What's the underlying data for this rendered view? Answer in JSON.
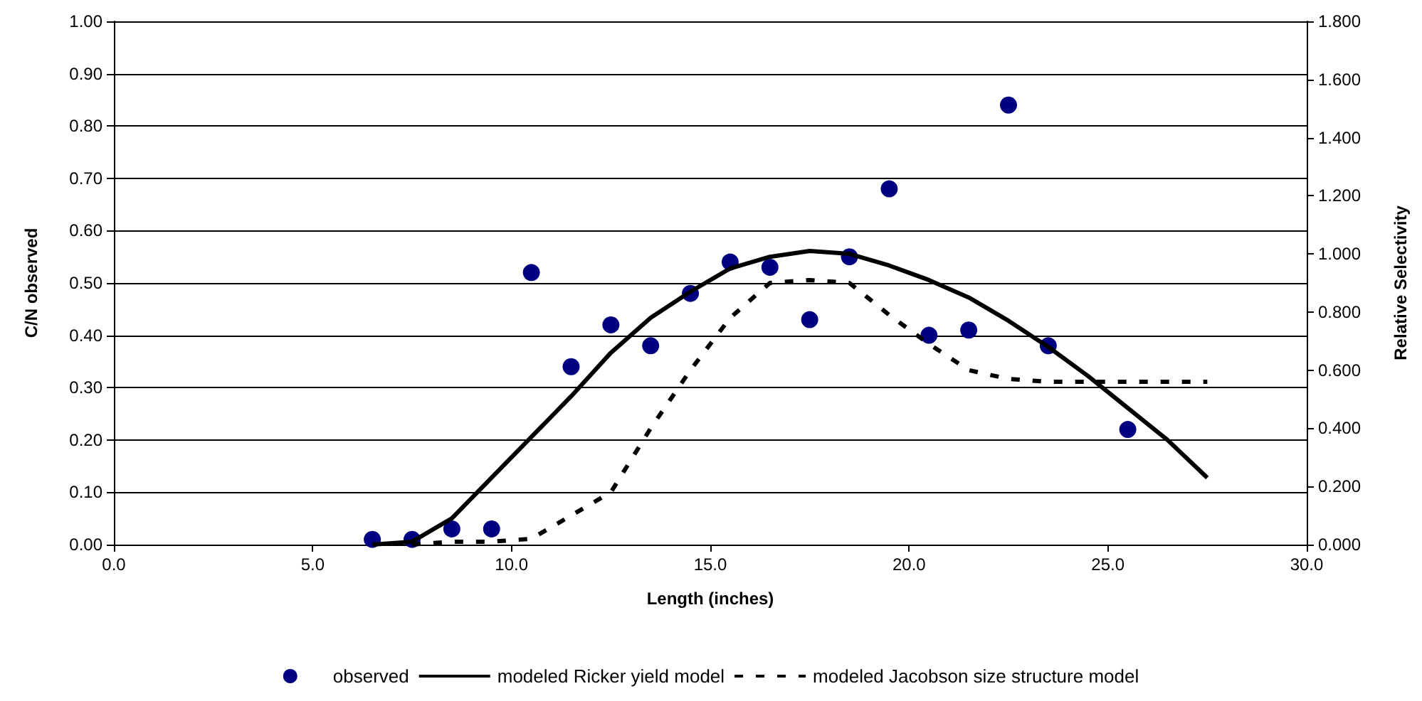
{
  "chart_data": {
    "type": "scatter",
    "xlabel": "Length (inches)",
    "ylabel": "C/N observed",
    "y2label": "Relative Selectivity",
    "xlim": [
      0,
      30
    ],
    "xticks": [
      {
        "value": 0,
        "label": "0.0"
      },
      {
        "value": 5,
        "label": "5.0"
      },
      {
        "value": 10,
        "label": "10.0"
      },
      {
        "value": 15,
        "label": "15.0"
      },
      {
        "value": 20,
        "label": "20.0"
      },
      {
        "value": 25,
        "label": "25.0"
      },
      {
        "value": 30,
        "label": "30.0"
      }
    ],
    "ylim": [
      0,
      1
    ],
    "yticks": [
      {
        "value": 0,
        "label": "0.00"
      },
      {
        "value": 0.1,
        "label": "0.10"
      },
      {
        "value": 0.2,
        "label": "0.20"
      },
      {
        "value": 0.3,
        "label": "0.30"
      },
      {
        "value": 0.4,
        "label": "0.40"
      },
      {
        "value": 0.5,
        "label": "0.50"
      },
      {
        "value": 0.6,
        "label": "0.60"
      },
      {
        "value": 0.7,
        "label": "0.70"
      },
      {
        "value": 0.8,
        "label": "0.80"
      },
      {
        "value": 0.9,
        "label": "0.90"
      },
      {
        "value": 1,
        "label": "1.00"
      }
    ],
    "y2lim": [
      0,
      1.8
    ],
    "y2ticks": [
      {
        "value": 0,
        "label": "0.000"
      },
      {
        "value": 0.2,
        "label": "0.200"
      },
      {
        "value": 0.4,
        "label": "0.400"
      },
      {
        "value": 0.6,
        "label": "0.600"
      },
      {
        "value": 0.8,
        "label": "0.800"
      },
      {
        "value": 1,
        "label": "1.000"
      },
      {
        "value": 1.2,
        "label": "1.200"
      },
      {
        "value": 1.4,
        "label": "1.400"
      },
      {
        "value": 1.6,
        "label": "1.600"
      },
      {
        "value": 1.8,
        "label": "1.800"
      }
    ],
    "grid": "y",
    "legend": "bottom",
    "series": [
      {
        "name": "observed",
        "marker": "circle",
        "color": "#000080",
        "x": [
          6.5,
          7.5,
          8.5,
          9.5,
          10.5,
          11.5,
          12.5,
          13.5,
          14.5,
          15.5,
          16.5,
          17.5,
          18.5,
          19.5,
          20.5,
          21.5,
          22.5,
          23.5,
          25.5
        ],
        "values": [
          0.01,
          0.01,
          0.03,
          0.03,
          0.52,
          0.34,
          0.42,
          0.38,
          0.48,
          0.54,
          0.53,
          0.43,
          0.55,
          0.68,
          0.4,
          0.41,
          0.84,
          0.38,
          0.22
        ]
      },
      {
        "name": "modeled Ricker yield model",
        "type": "line",
        "marker": "none",
        "line_style": "solid",
        "axis": "y2",
        "color": "#000000",
        "x": [
          6.5,
          7.5,
          8.5,
          9.5,
          10.5,
          11.5,
          12.5,
          13.5,
          14.5,
          15.5,
          16.5,
          17.5,
          18.5,
          19.5,
          20.5,
          21.5,
          22.5,
          23.5,
          24.5,
          25.5,
          26.5,
          27.5
        ],
        "values": [
          0.0,
          0.01,
          0.09,
          0.23,
          0.37,
          0.51,
          0.66,
          0.78,
          0.87,
          0.95,
          0.99,
          1.01,
          1.0,
          0.96,
          0.91,
          0.85,
          0.77,
          0.68,
          0.58,
          0.47,
          0.36,
          0.23
        ]
      },
      {
        "name": "modeled Jacobson size structure model",
        "type": "line",
        "marker": "none",
        "line_style": "dashed",
        "axis": "y2",
        "color": "#000000",
        "x": [
          7.5,
          8.5,
          9.5,
          10.5,
          11.5,
          12.5,
          13.5,
          14.5,
          15.5,
          16.5,
          17.5,
          18.5,
          19.5,
          20.5,
          21.5,
          22.5,
          23.5,
          24.5,
          25.5,
          26.5,
          27.5
        ],
        "values": [
          0.0,
          0.01,
          0.01,
          0.02,
          0.1,
          0.18,
          0.4,
          0.6,
          0.78,
          0.9,
          0.91,
          0.9,
          0.79,
          0.69,
          0.6,
          0.57,
          0.56,
          0.56,
          0.56,
          0.56,
          0.56
        ]
      }
    ]
  }
}
